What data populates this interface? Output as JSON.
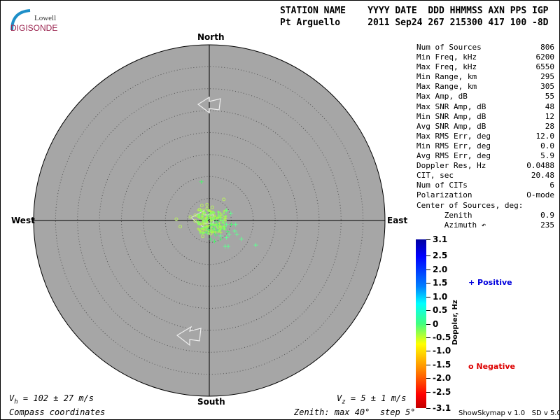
{
  "logo": {
    "line1": "Lowell",
    "line2": "DIGISONDE"
  },
  "header": {
    "labels": "STATION NAME    YYYY DATE  DDD HHMMSS AXN PPS IGP",
    "values": "Pt Arguello     2011 Sep24 267 215300 417 100 -8D"
  },
  "directions": {
    "north": "North",
    "south": "South",
    "east": "East",
    "west": "West"
  },
  "stats": [
    {
      "label": "Num of Sources",
      "value": "806"
    },
    {
      "label": "Min Freq, kHz",
      "value": "6200"
    },
    {
      "label": "Max Freq, kHz",
      "value": "6550"
    },
    {
      "label": "Min Range, km",
      "value": "295"
    },
    {
      "label": "Max Range, km",
      "value": "305"
    },
    {
      "label": "Max Amp, dB",
      "value": "55"
    },
    {
      "label": "Max SNR Amp, dB",
      "value": "48"
    },
    {
      "label": "Min SNR Amp, dB",
      "value": "12"
    },
    {
      "label": "Avg SNR Amp, dB",
      "value": "28"
    },
    {
      "label": "Max RMS Err, deg",
      "value": "12.0"
    },
    {
      "label": "Min RMS Err, deg",
      "value": "0.0"
    },
    {
      "label": "Avg RMS Err, deg",
      "value": "5.9"
    },
    {
      "label": "Doppler Res, Hz",
      "value": "0.0488"
    },
    {
      "label": "CIT, sec",
      "value": "20.48"
    },
    {
      "label": "Num of CITs",
      "value": "6"
    },
    {
      "label": "Polarization",
      "value": "O-mode"
    },
    {
      "label": "Center of Sources, deg:",
      "value": ""
    },
    {
      "label": "      Zenith",
      "value": "0.9"
    },
    {
      "label": "      Azimuth ↶",
      "value": "235"
    }
  ],
  "footer": {
    "vh": "Vₕ = 102 ± 27 m/s",
    "vz": "Vₓ = 5 ± 1 m/s",
    "vh_text": "= 102 ± 27 m/s",
    "vz_text": "= 5 ± 1 m/s",
    "coords": "Compass coordinates",
    "zenith": "Zenith: max 40°  step 5°",
    "version": "ShowSkymap v 1.0   SD v 5.0"
  },
  "colorbar": {
    "title": "Doppler, Hz",
    "ticks": [
      "3.1",
      "2.5",
      "2.0",
      "1.5",
      "1.0",
      "0.5",
      "0",
      "-0.5",
      "-1.0",
      "-1.5",
      "-2.0",
      "-2.5",
      "-3.1"
    ]
  },
  "legend": {
    "positive": "Positive",
    "negative": "Negative",
    "positive_color": "#0000dd",
    "negative_color": "#dd0000"
  },
  "chart_data": {
    "type": "scatter",
    "coordinate_system": "polar skymap, zenith angle radial, compass azimuth",
    "zenith_max_deg": 40,
    "zenith_step_deg": 5,
    "fields": [
      "east_deg",
      "north_deg",
      "doppler_hz"
    ],
    "points": [
      [
        -1.8,
        8.8,
        0.3
      ],
      [
        3.3,
        4.8,
        -0.4
      ],
      [
        -0.5,
        3.6,
        -0.4
      ],
      [
        -1.7,
        3.4,
        -0.4
      ],
      [
        -2.2,
        2.5,
        -0.4
      ],
      [
        -1.4,
        2.3,
        -0.4
      ],
      [
        0.7,
        3.0,
        -0.4
      ],
      [
        -0.5,
        2.7,
        -0.4
      ],
      [
        -4.3,
        0.8,
        -0.4
      ],
      [
        -7.5,
        0.3,
        -0.4
      ],
      [
        -6.6,
        -1.4,
        -0.4
      ],
      [
        -3.2,
        -0.1,
        -0.4
      ],
      [
        -2.4,
        -0.6,
        -0.4
      ],
      [
        -1.0,
        -1.1,
        -0.4
      ],
      [
        0.8,
        1.8,
        -0.4
      ],
      [
        2.9,
        1.0,
        -0.3
      ],
      [
        -3.2,
        1.2,
        -0.4
      ],
      [
        -2.5,
        1.0,
        -0.4
      ],
      [
        -1.2,
        1.6,
        -0.4
      ],
      [
        1.0,
        0.5,
        -0.4
      ],
      [
        2.0,
        -1.5,
        -0.4
      ],
      [
        -1.5,
        -3.6,
        -0.4
      ],
      [
        0.3,
        -3.0,
        -0.4
      ],
      [
        3.9,
        2.3,
        0.4
      ],
      [
        4.9,
        1.6,
        0.4
      ],
      [
        3.2,
        0.0,
        0.4
      ],
      [
        3.9,
        -0.9,
        0.4
      ],
      [
        5.0,
        -0.9,
        0.3
      ],
      [
        3.5,
        -1.7,
        0.3
      ],
      [
        4.2,
        -2.5,
        0.3
      ],
      [
        1.8,
        -2.3,
        0.3
      ],
      [
        2.6,
        -3.5,
        0.4
      ],
      [
        3.9,
        -3.9,
        0.4
      ],
      [
        4.5,
        -3.2,
        0.4
      ],
      [
        5.8,
        -2.4,
        0.4
      ],
      [
        6.0,
        -0.9,
        0.5
      ],
      [
        1.2,
        -4.7,
        0.3
      ],
      [
        0.3,
        -4.2,
        0.3
      ],
      [
        -0.6,
        -2.6,
        0.3
      ],
      [
        -0.5,
        -1.6,
        0.3
      ],
      [
        0.5,
        -0.8,
        0.3
      ],
      [
        1.6,
        -0.3,
        0.3
      ],
      [
        2.4,
        -1.0,
        0.3
      ],
      [
        1.2,
        -2.6,
        0.3
      ],
      [
        6.3,
        -3.1,
        0.4
      ],
      [
        7.3,
        -4.2,
        0.5
      ],
      [
        10.6,
        -5.6,
        0.5
      ],
      [
        3.6,
        -5.9,
        0.4
      ],
      [
        4.3,
        -5.9,
        0.4
      ],
      [
        2.6,
        -4.2,
        0.3
      ],
      [
        -0.2,
        -2.0,
        0.2
      ],
      [
        0.6,
        0.0,
        0.2
      ],
      [
        1.4,
        0.8,
        0.2
      ],
      [
        -0.4,
        0.5,
        0.2
      ],
      [
        0.2,
        -1.2,
        0.2
      ],
      [
        2.2,
        0.4,
        0.2
      ],
      [
        1.9,
        -0.9,
        0.2
      ],
      [
        0.9,
        -1.8,
        0.2
      ],
      [
        -0.8,
        -0.2,
        -0.2
      ],
      [
        0.4,
        1.1,
        -0.2
      ],
      [
        2.6,
        -2.1,
        0.2
      ],
      [
        1.5,
        -3.3,
        0.3
      ]
    ]
  }
}
